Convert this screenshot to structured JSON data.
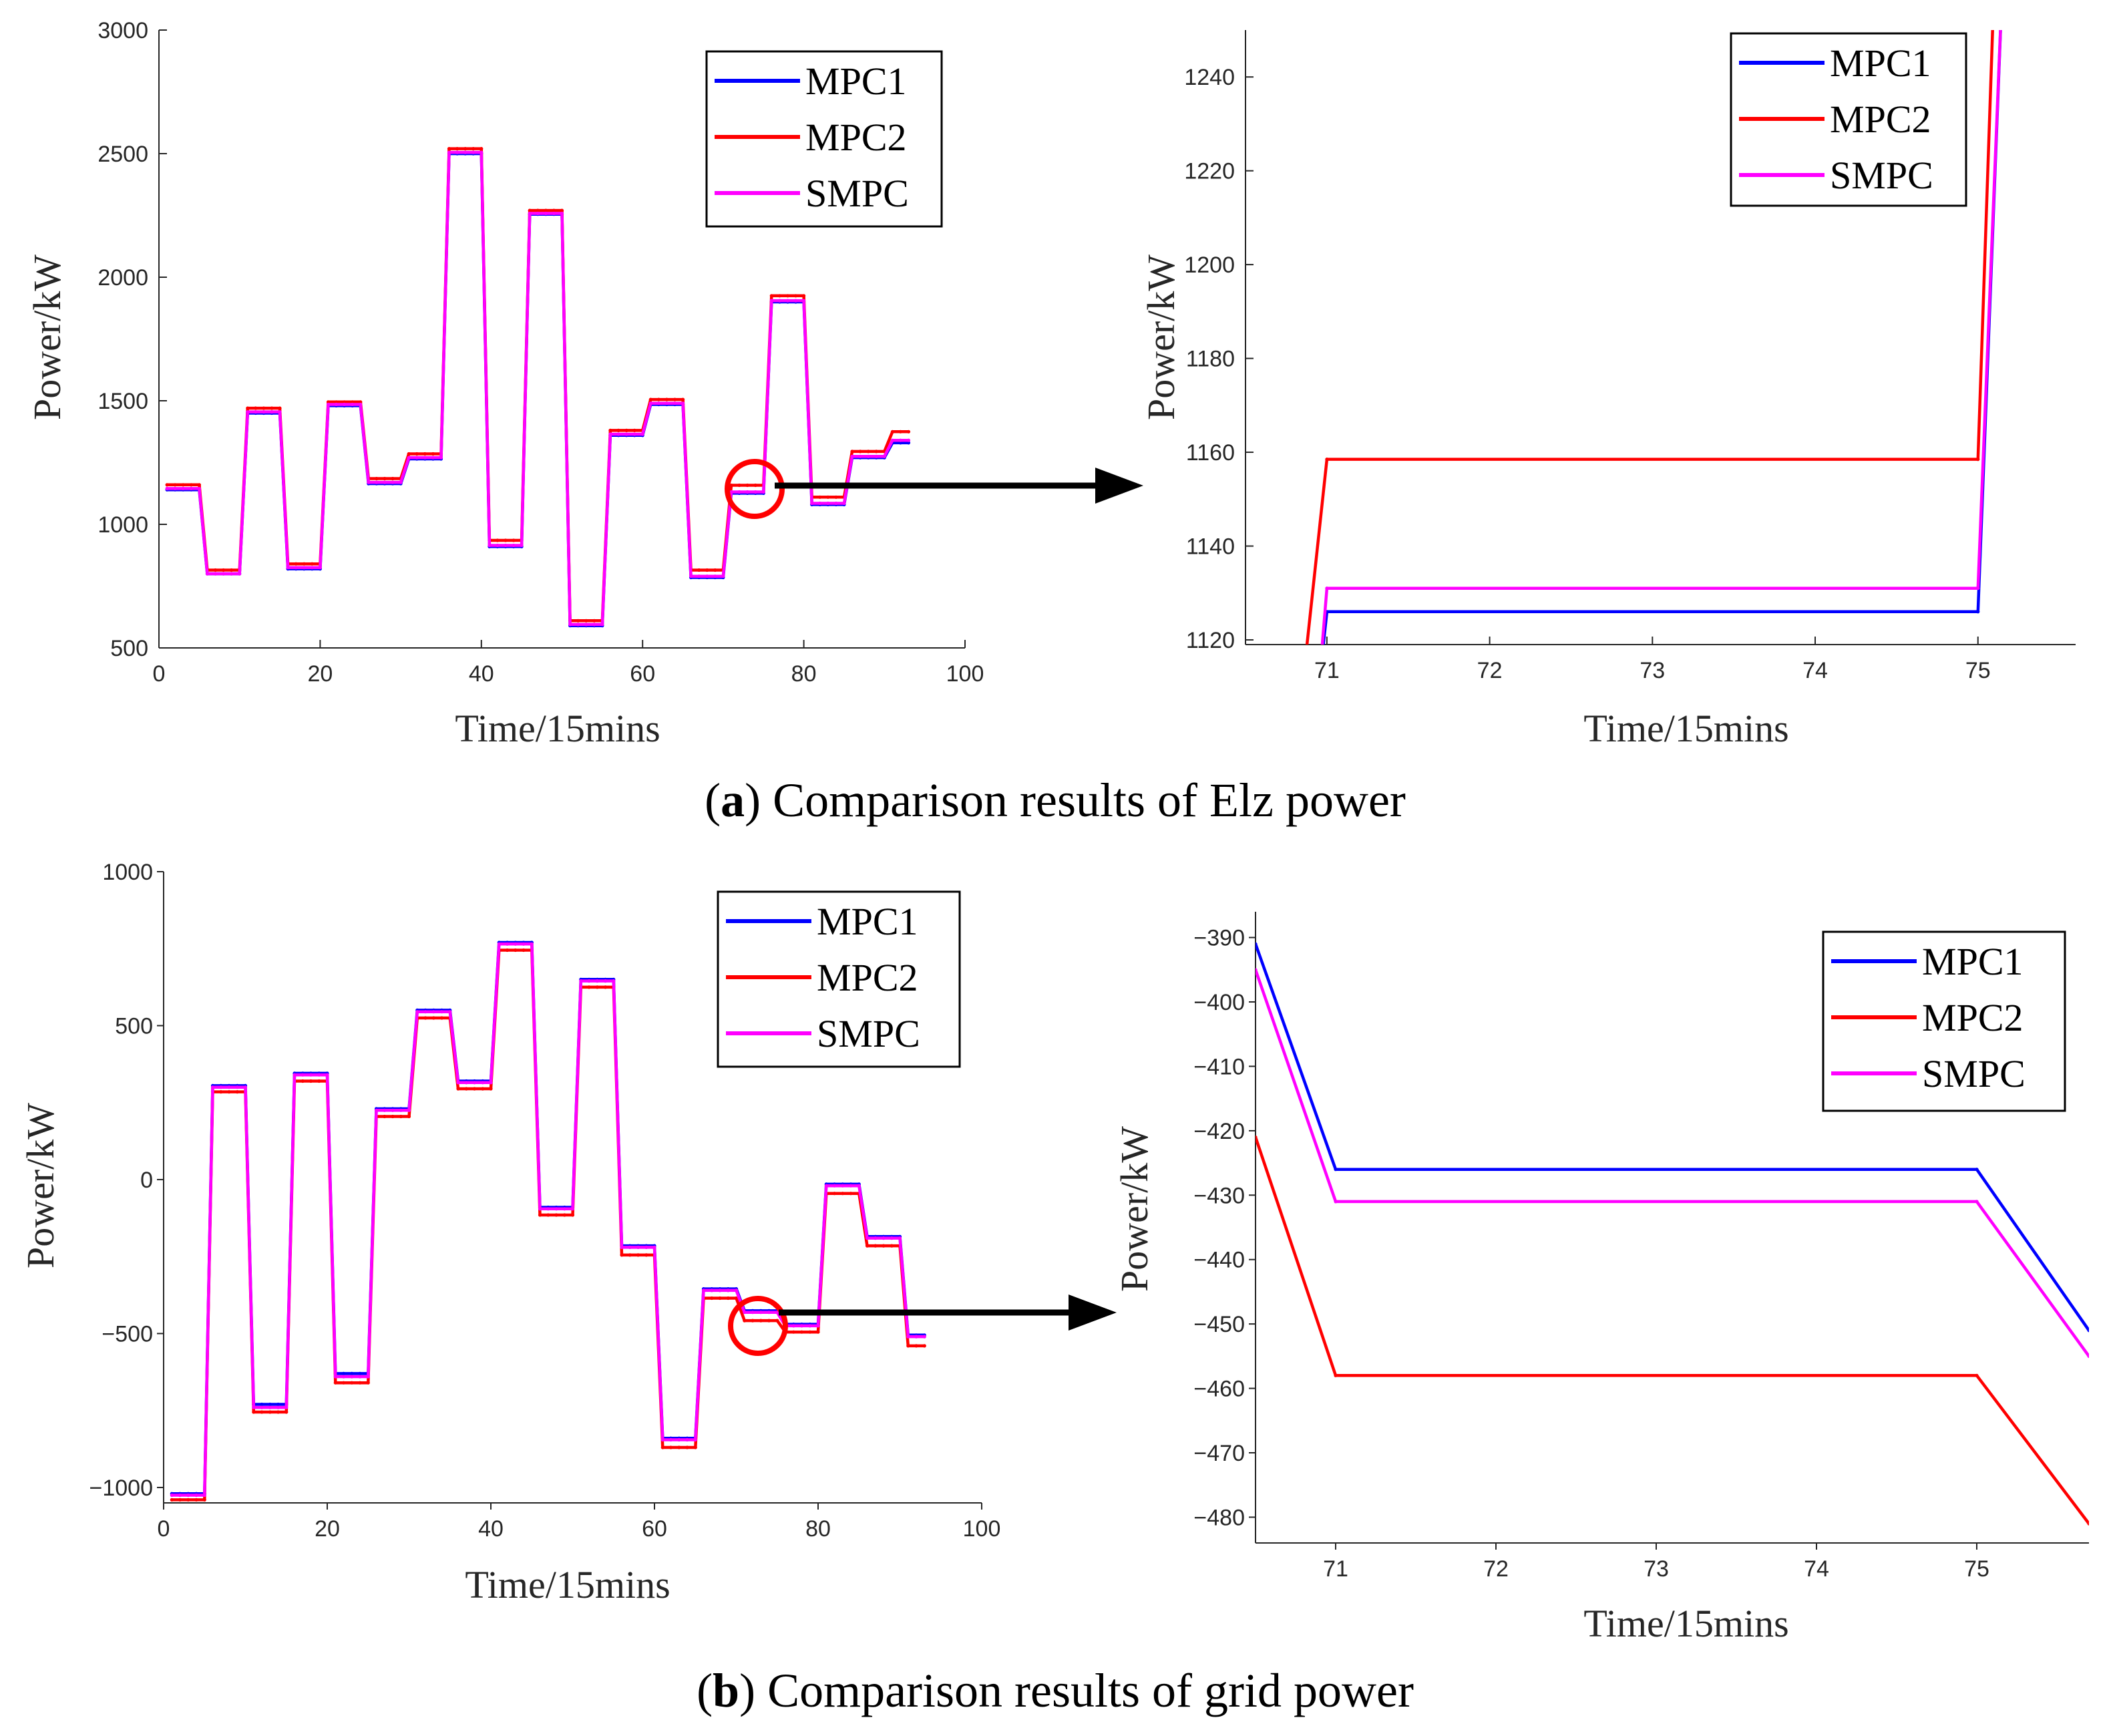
{
  "chart_data": [
    {
      "type": "line",
      "id": "a-main",
      "xlabel": "Time/15mins",
      "ylabel": "Power/kW",
      "xlim": [
        0,
        100
      ],
      "ylim": [
        500,
        3000
      ],
      "xticks": [
        0,
        20,
        40,
        60,
        80,
        100
      ],
      "yticks": [
        500,
        1000,
        1500,
        2000,
        2500,
        3000
      ],
      "legend": [
        "MPC1",
        "MPC2",
        "SMPC"
      ],
      "colors": {
        "MPC1": "#0000ff",
        "MPC2": "#ff0000",
        "SMPC": "#ff00ff"
      },
      "levels": {
        "steps": [
          [
            1,
            5
          ],
          [
            6,
            10
          ],
          [
            11,
            15
          ],
          [
            16,
            20
          ],
          [
            21,
            25
          ],
          [
            26,
            30
          ],
          [
            31,
            35
          ],
          [
            36,
            40
          ],
          [
            41,
            45
          ],
          [
            46,
            50
          ],
          [
            51,
            55
          ],
          [
            56,
            60
          ],
          [
            61,
            65
          ],
          [
            66,
            70
          ],
          [
            71,
            75
          ],
          [
            76,
            80
          ],
          [
            81,
            85
          ],
          [
            86,
            90
          ],
          [
            91,
            93
          ]
        ],
        "MPC1": [
          1140,
          800,
          1450,
          820,
          1480,
          1165,
          1265,
          2500,
          910,
          2255,
          590,
          1360,
          1485,
          785,
          1126,
          1900,
          1080,
          1270,
          1330
        ],
        "MPC2": [
          1160,
          815,
          1470,
          840,
          1495,
          1185,
          1285,
          2520,
          935,
          2270,
          610,
          1380,
          1505,
          815,
          1158,
          1925,
          1110,
          1295,
          1375
        ],
        "SMPC": [
          1145,
          800,
          1455,
          825,
          1485,
          1170,
          1270,
          2505,
          915,
          2258,
          595,
          1365,
          1490,
          790,
          1131,
          1905,
          1085,
          1275,
          1340
        ]
      }
    },
    {
      "type": "line",
      "id": "a-zoom",
      "xlabel": "Time/15mins",
      "ylabel": "Power/kW",
      "xlim": [
        70.5,
        75.6
      ],
      "ylim": [
        1119,
        1250
      ],
      "xticks": [
        71,
        72,
        73,
        74,
        75
      ],
      "yticks": [
        1120,
        1140,
        1160,
        1180,
        1200,
        1220,
        1240
      ],
      "legend": [
        "MPC1",
        "MPC2",
        "SMPC"
      ],
      "colors": {
        "MPC1": "#0000ff",
        "MPC2": "#ff0000",
        "SMPC": "#ff00ff"
      },
      "series": [
        {
          "name": "MPC1",
          "x": [
            70.95,
            71,
            75,
            75.15
          ],
          "y": [
            1110,
            1126,
            1126,
            1260
          ]
        },
        {
          "name": "MPC2",
          "x": [
            70.85,
            71,
            75,
            75.1
          ],
          "y": [
            1110,
            1158.5,
            1158.5,
            1260
          ]
        },
        {
          "name": "SMPC",
          "x": [
            70.95,
            71,
            75,
            75.15
          ],
          "y": [
            1110,
            1131,
            1131,
            1260
          ]
        }
      ]
    },
    {
      "type": "line",
      "id": "b-main",
      "xlabel": "Time/15mins",
      "ylabel": "Power/kW",
      "xlim": [
        0,
        100
      ],
      "ylim": [
        -1050,
        1000
      ],
      "xticks": [
        0,
        20,
        40,
        60,
        80,
        100
      ],
      "yticks": [
        -1000,
        -500,
        0,
        500,
        1000
      ],
      "legend": [
        "MPC1",
        "MPC2",
        "SMPC"
      ],
      "colors": {
        "MPC1": "#0000ff",
        "MPC2": "#ff0000",
        "SMPC": "#ff00ff"
      },
      "levels": {
        "steps": [
          [
            1,
            5
          ],
          [
            6,
            10
          ],
          [
            11,
            15
          ],
          [
            16,
            20
          ],
          [
            21,
            25
          ],
          [
            26,
            30
          ],
          [
            31,
            35
          ],
          [
            36,
            40
          ],
          [
            41,
            45
          ],
          [
            46,
            50
          ],
          [
            51,
            55
          ],
          [
            56,
            60
          ],
          [
            61,
            65
          ],
          [
            66,
            70
          ],
          [
            71,
            75
          ],
          [
            76,
            80
          ],
          [
            81,
            85
          ],
          [
            86,
            90
          ],
          [
            91,
            93
          ]
        ],
        "MPC1": [
          -1020,
          305,
          -730,
          345,
          -630,
          230,
          550,
          320,
          770,
          -90,
          650,
          -215,
          -840,
          -355,
          -426,
          -470,
          -15,
          -185,
          -505
        ],
        "MPC2": [
          -1040,
          285,
          -755,
          320,
          -660,
          205,
          525,
          295,
          745,
          -115,
          625,
          -245,
          -870,
          -385,
          -458,
          -495,
          -45,
          -215,
          -540
        ],
        "SMPC": [
          -1025,
          300,
          -740,
          340,
          -640,
          225,
          545,
          315,
          765,
          -95,
          645,
          -220,
          -845,
          -360,
          -431,
          -475,
          -20,
          -190,
          -510
        ]
      }
    },
    {
      "type": "line",
      "id": "b-zoom",
      "xlabel": "Time/15mins",
      "ylabel": "Power/kW",
      "xlim": [
        70.5,
        75.7
      ],
      "ylim": [
        -484,
        -386
      ],
      "xticks": [
        71,
        72,
        73,
        74,
        75
      ],
      "yticks": [
        -390,
        -400,
        -410,
        -420,
        -430,
        -440,
        -450,
        -460,
        -470,
        -480
      ],
      "legend": [
        "MPC1",
        "MPC2",
        "SMPC"
      ],
      "colors": {
        "MPC1": "#0000ff",
        "MPC2": "#ff0000",
        "SMPC": "#ff00ff"
      },
      "series": [
        {
          "name": "MPC1",
          "x": [
            70.5,
            71,
            75,
            75.7
          ],
          "y": [
            -391,
            -426,
            -426,
            -451
          ]
        },
        {
          "name": "MPC2",
          "x": [
            70.5,
            71,
            75,
            75.7
          ],
          "y": [
            -421,
            -458,
            -458,
            -481
          ]
        },
        {
          "name": "SMPC",
          "x": [
            70.5,
            71,
            75,
            75.7
          ],
          "y": [
            -395,
            -431,
            -431,
            -455
          ]
        }
      ]
    }
  ],
  "captions": {
    "a": {
      "label": "a",
      "text": ") Comparison results of Elz power",
      "open": "("
    },
    "b": {
      "label": "b",
      "text": ") Comparison results of grid power",
      "open": "("
    }
  },
  "annotation": {
    "circle_color": "#ff0000",
    "arrow_color": "#000000"
  }
}
